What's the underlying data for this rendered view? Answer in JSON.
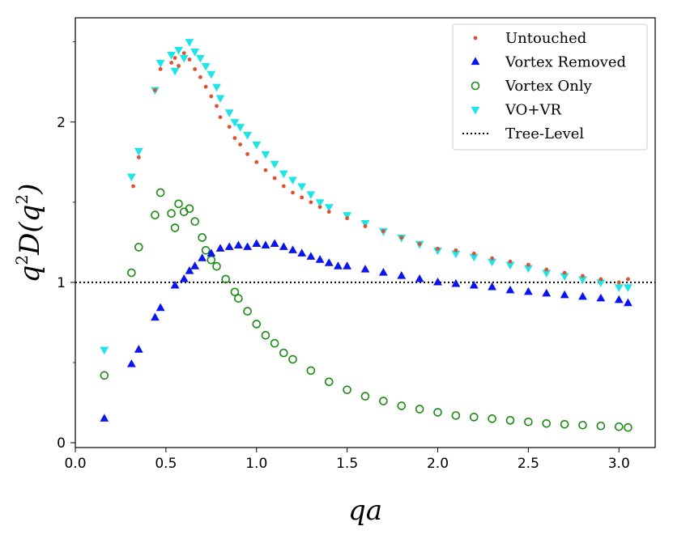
{
  "chart_data": {
    "type": "scatter",
    "xlabel": "qa",
    "ylabel_main": "q",
    "ylabel_sup1": "2",
    "ylabel_mid": "D(q",
    "ylabel_sup2": "2",
    "ylabel_end": ")",
    "xlim": [
      0.0,
      3.2
    ],
    "ylim": [
      -0.03,
      2.65
    ],
    "xticks": [
      "0.0",
      "0.5",
      "1.0",
      "1.5",
      "2.0",
      "2.5",
      "3.0"
    ],
    "xtick_values": [
      0.0,
      0.5,
      1.0,
      1.5,
      2.0,
      2.5,
      3.0
    ],
    "yticks": [
      "0",
      "1",
      "2"
    ],
    "ytick_values": [
      0,
      1,
      2
    ],
    "legend_position": "top-right",
    "reference_line": {
      "name": "Tree-Level",
      "y": 1.0,
      "style": "dotted",
      "color": "#000000"
    },
    "series": [
      {
        "name": "Untouched",
        "marker": "dot",
        "color": "#e0502c",
        "x": [
          0.32,
          0.35,
          0.44,
          0.47,
          0.53,
          0.55,
          0.57,
          0.6,
          0.63,
          0.66,
          0.69,
          0.72,
          0.75,
          0.78,
          0.8,
          0.85,
          0.88,
          0.91,
          0.95,
          1.0,
          1.05,
          1.1,
          1.15,
          1.2,
          1.25,
          1.3,
          1.35,
          1.4,
          1.5,
          1.6,
          1.7,
          1.8,
          1.9,
          2.0,
          2.1,
          2.2,
          2.3,
          2.4,
          2.5,
          2.6,
          2.7,
          2.8,
          2.9,
          3.0,
          3.05
        ],
        "y": [
          1.6,
          1.78,
          2.2,
          2.33,
          2.37,
          2.4,
          2.35,
          2.43,
          2.39,
          2.33,
          2.28,
          2.22,
          2.16,
          2.1,
          2.03,
          1.97,
          1.9,
          1.86,
          1.8,
          1.75,
          1.7,
          1.65,
          1.6,
          1.56,
          1.53,
          1.5,
          1.47,
          1.44,
          1.4,
          1.35,
          1.32,
          1.28,
          1.24,
          1.21,
          1.2,
          1.18,
          1.15,
          1.13,
          1.11,
          1.08,
          1.06,
          1.04,
          1.02,
          1.0,
          1.02
        ]
      },
      {
        "name": "Vortex Removed",
        "marker": "triangle-up",
        "color": "#0a14ee",
        "x": [
          0.16,
          0.31,
          0.35,
          0.44,
          0.47,
          0.55,
          0.6,
          0.63,
          0.66,
          0.7,
          0.75,
          0.8,
          0.85,
          0.9,
          0.95,
          1.0,
          1.05,
          1.1,
          1.15,
          1.2,
          1.25,
          1.3,
          1.35,
          1.4,
          1.45,
          1.5,
          1.6,
          1.7,
          1.8,
          1.9,
          2.0,
          2.1,
          2.2,
          2.3,
          2.4,
          2.5,
          2.6,
          2.7,
          2.8,
          2.9,
          3.0,
          3.05
        ],
        "y": [
          0.15,
          0.49,
          0.58,
          0.78,
          0.84,
          0.98,
          1.02,
          1.07,
          1.1,
          1.15,
          1.18,
          1.21,
          1.22,
          1.23,
          1.22,
          1.24,
          1.23,
          1.24,
          1.22,
          1.2,
          1.18,
          1.16,
          1.14,
          1.12,
          1.1,
          1.1,
          1.08,
          1.06,
          1.04,
          1.02,
          1.0,
          0.99,
          0.98,
          0.97,
          0.95,
          0.94,
          0.93,
          0.92,
          0.91,
          0.9,
          0.89,
          0.87
        ]
      },
      {
        "name": "Vortex Only",
        "marker": "circle-open",
        "color": "#1a8a12",
        "x": [
          0.16,
          0.31,
          0.35,
          0.44,
          0.47,
          0.53,
          0.55,
          0.57,
          0.6,
          0.63,
          0.66,
          0.7,
          0.72,
          0.75,
          0.78,
          0.83,
          0.88,
          0.9,
          0.95,
          1.0,
          1.05,
          1.1,
          1.15,
          1.2,
          1.3,
          1.4,
          1.5,
          1.6,
          1.7,
          1.8,
          1.9,
          2.0,
          2.1,
          2.2,
          2.3,
          2.4,
          2.5,
          2.6,
          2.7,
          2.8,
          2.9,
          3.0,
          3.05
        ],
        "y": [
          0.42,
          1.06,
          1.22,
          1.42,
          1.56,
          1.43,
          1.34,
          1.49,
          1.44,
          1.46,
          1.38,
          1.28,
          1.2,
          1.14,
          1.1,
          1.02,
          0.94,
          0.9,
          0.82,
          0.74,
          0.67,
          0.62,
          0.56,
          0.52,
          0.45,
          0.38,
          0.33,
          0.29,
          0.26,
          0.23,
          0.21,
          0.19,
          0.17,
          0.16,
          0.15,
          0.14,
          0.13,
          0.12,
          0.115,
          0.11,
          0.105,
          0.1,
          0.095
        ]
      },
      {
        "name": "VO+VR",
        "marker": "triangle-down",
        "color": "#1ee4e8",
        "x": [
          0.16,
          0.31,
          0.35,
          0.44,
          0.47,
          0.53,
          0.55,
          0.57,
          0.6,
          0.63,
          0.66,
          0.69,
          0.72,
          0.75,
          0.78,
          0.8,
          0.85,
          0.88,
          0.91,
          0.95,
          1.0,
          1.05,
          1.1,
          1.15,
          1.2,
          1.25,
          1.3,
          1.35,
          1.4,
          1.5,
          1.6,
          1.7,
          1.8,
          1.9,
          2.0,
          2.1,
          2.2,
          2.3,
          2.4,
          2.5,
          2.6,
          2.7,
          2.8,
          2.9,
          3.0,
          3.05
        ],
        "y": [
          0.58,
          1.66,
          1.82,
          2.2,
          2.37,
          2.42,
          2.32,
          2.45,
          2.4,
          2.5,
          2.44,
          2.4,
          2.35,
          2.3,
          2.22,
          2.15,
          2.06,
          2.0,
          1.97,
          1.92,
          1.86,
          1.8,
          1.74,
          1.68,
          1.64,
          1.6,
          1.55,
          1.5,
          1.47,
          1.42,
          1.37,
          1.32,
          1.28,
          1.24,
          1.2,
          1.18,
          1.16,
          1.13,
          1.11,
          1.09,
          1.06,
          1.04,
          1.02,
          1.0,
          0.97,
          0.97
        ]
      }
    ]
  }
}
